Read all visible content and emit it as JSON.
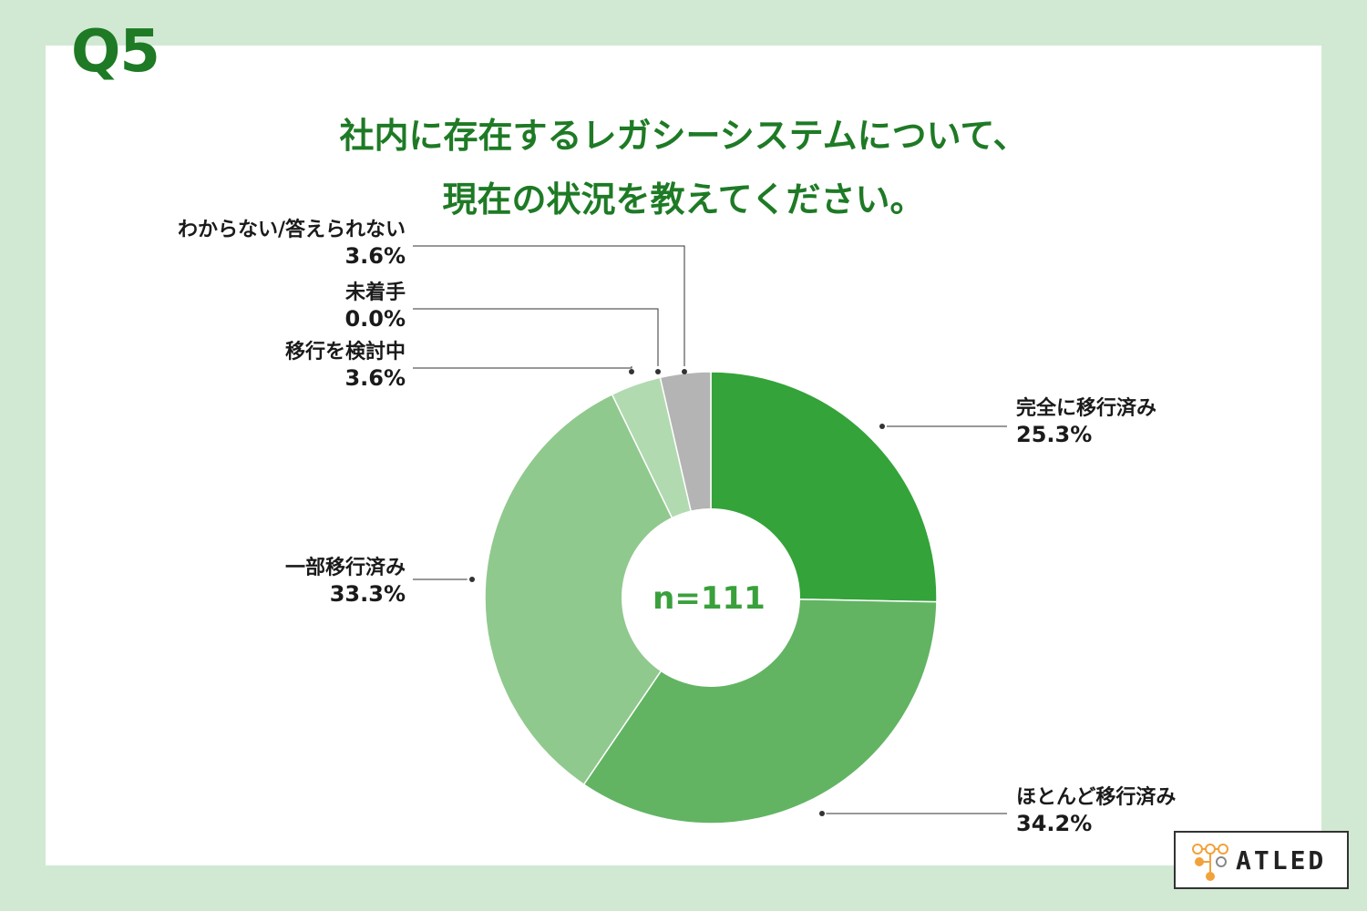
{
  "question_number": "Q5",
  "title_line1": "社内に存在するレガシーシステムについて、",
  "title_line2": "現在の状況を教えてください。",
  "logo": {
    "text": "ATLED"
  },
  "colors": {
    "background": "#d1e9d3",
    "title": "#1e7a25",
    "slice_1": "#34a33a",
    "slice_2": "#62b463",
    "slice_3": "#90c98d",
    "slice_4": "#b1dab0",
    "slice_5": "#9fd19c",
    "slice_6": "#b4b4b4"
  },
  "chart_data": {
    "type": "pie",
    "donut": true,
    "center_label": "n=111",
    "slices": [
      {
        "label": "完全に移行済み",
        "value": 25.3,
        "value_label": "25.3%",
        "color": "#34a33a"
      },
      {
        "label": "ほとんど移行済み",
        "value": 34.2,
        "value_label": "34.2%",
        "color": "#62b463"
      },
      {
        "label": "一部移行済み",
        "value": 33.3,
        "value_label": "33.3%",
        "color": "#90c98d"
      },
      {
        "label": "移行を検討中",
        "value": 3.6,
        "value_label": "3.6%",
        "color": "#b1dab0"
      },
      {
        "label": "未着手",
        "value": 0.0,
        "value_label": "0.0%",
        "color": "#9fd19c"
      },
      {
        "label": "わからない/答えられない",
        "value": 3.6,
        "value_label": "3.6%",
        "color": "#b4b4b4"
      }
    ]
  }
}
